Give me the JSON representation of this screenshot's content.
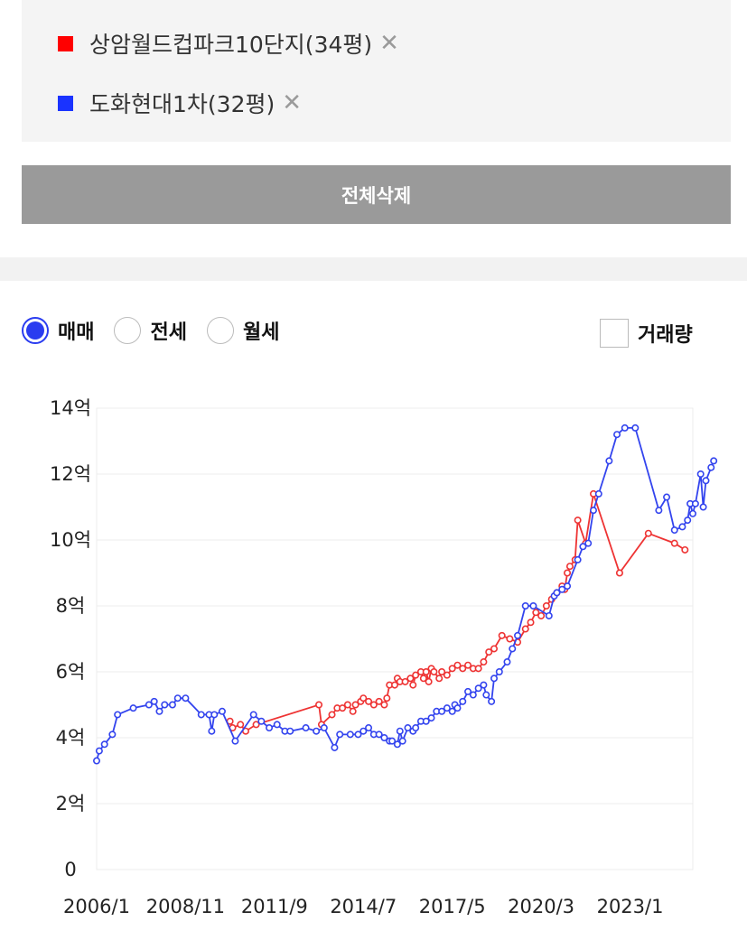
{
  "legend": {
    "items": [
      {
        "label": "상암월드컵파크10단지(34평)",
        "color": "#ff0000",
        "remove": "✕"
      },
      {
        "label": "도화현대1차(32평)",
        "color": "#1a33ff",
        "remove": "✕"
      }
    ]
  },
  "delete_all_label": "전체삭제",
  "tabs": [
    {
      "label": "매매",
      "selected": true
    },
    {
      "label": "전세",
      "selected": false
    },
    {
      "label": "월세",
      "selected": false
    }
  ],
  "volume_label": "거래량",
  "volume_checked": false,
  "chart_data": {
    "type": "line",
    "title": "",
    "xlabel": "",
    "ylabel": "",
    "ylim": [
      0,
      14
    ],
    "y_ticks": [
      0,
      2,
      4,
      6,
      8,
      10,
      12,
      14
    ],
    "y_tick_labels": [
      "0",
      "2억",
      "4억",
      "6억",
      "8억",
      "10억",
      "12억",
      "14억"
    ],
    "xlim": [
      "2006/1",
      "2025/1"
    ],
    "x_ticks": [
      "2006/1",
      "2008/11",
      "2011/9",
      "2014/7",
      "2017/5",
      "2020/3",
      "2023/1"
    ],
    "grid": true,
    "series": [
      {
        "name": "상암월드컵파크10단지(34평)",
        "color": "#ee3333",
        "points": [
          [
            "2010/4",
            4.5
          ],
          [
            "2010/5",
            4.3
          ],
          [
            "2010/8",
            4.4
          ],
          [
            "2010/10",
            4.2
          ],
          [
            "2011/2",
            4.4
          ],
          [
            "2013/2",
            5.0
          ],
          [
            "2013/3",
            4.4
          ],
          [
            "2013/7",
            4.7
          ],
          [
            "2013/9",
            4.9
          ],
          [
            "2013/11",
            4.9
          ],
          [
            "2014/1",
            5.0
          ],
          [
            "2014/3",
            4.8
          ],
          [
            "2014/4",
            5.0
          ],
          [
            "2014/6",
            5.1
          ],
          [
            "2014/7",
            5.2
          ],
          [
            "2014/9",
            5.1
          ],
          [
            "2014/11",
            5.0
          ],
          [
            "2015/1",
            5.1
          ],
          [
            "2015/3",
            5.0
          ],
          [
            "2015/4",
            5.2
          ],
          [
            "2015/5",
            5.6
          ],
          [
            "2015/7",
            5.6
          ],
          [
            "2015/8",
            5.8
          ],
          [
            "2015/9",
            5.7
          ],
          [
            "2015/11",
            5.7
          ],
          [
            "2016/1",
            5.8
          ],
          [
            "2016/2",
            5.6
          ],
          [
            "2016/3",
            5.9
          ],
          [
            "2016/5",
            6.0
          ],
          [
            "2016/6",
            5.8
          ],
          [
            "2016/7",
            6.0
          ],
          [
            "2016/8",
            5.7
          ],
          [
            "2016/9",
            6.1
          ],
          [
            "2016/10",
            6.0
          ],
          [
            "2016/12",
            5.8
          ],
          [
            "2017/1",
            6.0
          ],
          [
            "2017/3",
            5.9
          ],
          [
            "2017/5",
            6.1
          ],
          [
            "2017/7",
            6.2
          ],
          [
            "2017/9",
            6.1
          ],
          [
            "2017/11",
            6.2
          ],
          [
            "2018/1",
            6.1
          ],
          [
            "2018/3",
            6.1
          ],
          [
            "2018/5",
            6.3
          ],
          [
            "2018/7",
            6.6
          ],
          [
            "2018/9",
            6.7
          ],
          [
            "2018/12",
            7.1
          ],
          [
            "2019/3",
            7.0
          ],
          [
            "2019/6",
            6.9
          ],
          [
            "2019/9",
            7.3
          ],
          [
            "2019/11",
            7.5
          ],
          [
            "2020/1",
            7.8
          ],
          [
            "2020/3",
            7.7
          ],
          [
            "2020/5",
            8.0
          ],
          [
            "2020/7",
            8.2
          ],
          [
            "2020/9",
            8.4
          ],
          [
            "2020/11",
            8.6
          ],
          [
            "2020/12",
            8.5
          ],
          [
            "2021/1",
            9.0
          ],
          [
            "2021/2",
            9.2
          ],
          [
            "2021/4",
            9.4
          ],
          [
            "2021/5",
            10.6
          ],
          [
            "2021/8",
            9.9
          ],
          [
            "2021/11",
            11.4
          ],
          [
            "2022/9",
            9.0
          ],
          [
            "2023/8",
            10.2
          ],
          [
            "2024/6",
            9.9
          ],
          [
            "2024/10",
            9.7
          ]
        ]
      },
      {
        "name": "도화현대1차(32평)",
        "color": "#3344ee",
        "points": [
          [
            "2006/1",
            3.3
          ],
          [
            "2006/2",
            3.6
          ],
          [
            "2006/4",
            3.8
          ],
          [
            "2006/7",
            4.1
          ],
          [
            "2006/9",
            4.7
          ],
          [
            "2007/3",
            4.9
          ],
          [
            "2007/9",
            5.0
          ],
          [
            "2007/11",
            5.1
          ],
          [
            "2008/1",
            4.8
          ],
          [
            "2008/3",
            5.0
          ],
          [
            "2008/6",
            5.0
          ],
          [
            "2008/8",
            5.2
          ],
          [
            "2008/11",
            5.2
          ],
          [
            "2009/5",
            4.7
          ],
          [
            "2009/8",
            4.7
          ],
          [
            "2009/9",
            4.2
          ],
          [
            "2009/10",
            4.7
          ],
          [
            "2010/1",
            4.8
          ],
          [
            "2010/6",
            3.9
          ],
          [
            "2011/1",
            4.7
          ],
          [
            "2011/4",
            4.5
          ],
          [
            "2011/7",
            4.3
          ],
          [
            "2011/10",
            4.4
          ],
          [
            "2012/1",
            4.2
          ],
          [
            "2012/3",
            4.2
          ],
          [
            "2012/9",
            4.3
          ],
          [
            "2013/1",
            4.2
          ],
          [
            "2013/4",
            4.3
          ],
          [
            "2013/8",
            3.7
          ],
          [
            "2013/10",
            4.1
          ],
          [
            "2014/2",
            4.1
          ],
          [
            "2014/5",
            4.1
          ],
          [
            "2014/7",
            4.2
          ],
          [
            "2014/9",
            4.3
          ],
          [
            "2014/11",
            4.1
          ],
          [
            "2015/1",
            4.1
          ],
          [
            "2015/3",
            4.0
          ],
          [
            "2015/5",
            3.9
          ],
          [
            "2015/6",
            3.9
          ],
          [
            "2015/8",
            3.8
          ],
          [
            "2015/9",
            4.2
          ],
          [
            "2015/10",
            3.9
          ],
          [
            "2015/12",
            4.3
          ],
          [
            "2016/2",
            4.2
          ],
          [
            "2016/3",
            4.3
          ],
          [
            "2016/5",
            4.5
          ],
          [
            "2016/7",
            4.5
          ],
          [
            "2016/9",
            4.6
          ],
          [
            "2016/11",
            4.8
          ],
          [
            "2017/1",
            4.8
          ],
          [
            "2017/3",
            4.9
          ],
          [
            "2017/5",
            4.8
          ],
          [
            "2017/6",
            5.0
          ],
          [
            "2017/7",
            4.9
          ],
          [
            "2017/9",
            5.1
          ],
          [
            "2017/11",
            5.4
          ],
          [
            "2018/1",
            5.3
          ],
          [
            "2018/3",
            5.5
          ],
          [
            "2018/5",
            5.6
          ],
          [
            "2018/6",
            5.3
          ],
          [
            "2018/8",
            5.1
          ],
          [
            "2018/9",
            5.8
          ],
          [
            "2018/11",
            6.0
          ],
          [
            "2019/2",
            6.3
          ],
          [
            "2019/4",
            6.7
          ],
          [
            "2019/6",
            7.1
          ],
          [
            "2019/9",
            8.0
          ],
          [
            "2019/12",
            8.0
          ],
          [
            "2020/6",
            7.7
          ],
          [
            "2020/8",
            8.3
          ],
          [
            "2020/9",
            8.4
          ],
          [
            "2020/11",
            8.5
          ],
          [
            "2021/1",
            8.6
          ],
          [
            "2021/5",
            9.4
          ],
          [
            "2021/7",
            9.8
          ],
          [
            "2021/9",
            9.9
          ],
          [
            "2021/11",
            10.9
          ],
          [
            "2022/1",
            11.4
          ],
          [
            "2022/5",
            12.4
          ],
          [
            "2022/8",
            13.2
          ],
          [
            "2022/11",
            13.4
          ],
          [
            "2023/3",
            13.4
          ],
          [
            "2023/12",
            10.9
          ],
          [
            "2024/3",
            11.3
          ],
          [
            "2024/6",
            10.3
          ],
          [
            "2024/9",
            10.4
          ],
          [
            "2024/11",
            10.6
          ],
          [
            "2024/12",
            11.1
          ],
          [
            "2025/1",
            10.8
          ],
          [
            "2025/2",
            11.1
          ],
          [
            "2025/4",
            12.0
          ],
          [
            "2025/5",
            11.0
          ],
          [
            "2025/6",
            11.8
          ],
          [
            "2025/8",
            12.2
          ],
          [
            "2025/9",
            12.4
          ]
        ]
      }
    ]
  }
}
